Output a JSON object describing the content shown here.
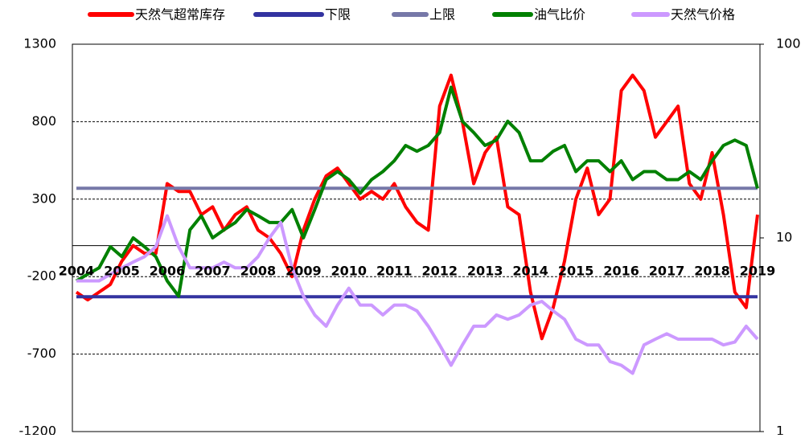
{
  "chart_data": {
    "type": "line",
    "categories": [
      "2004",
      null,
      null,
      null,
      "2005",
      null,
      null,
      null,
      "2006",
      null,
      null,
      null,
      "2007",
      null,
      null,
      null,
      "2008",
      null,
      null,
      null,
      "2009",
      null,
      null,
      null,
      "2010",
      null,
      null,
      null,
      "2011",
      null,
      null,
      null,
      "2012",
      null,
      null,
      null,
      "2013",
      null,
      null,
      null,
      "2014",
      null,
      null,
      null,
      "2015",
      null,
      null,
      null,
      "2016",
      null,
      null,
      null,
      "2017",
      null,
      null,
      null,
      "2018",
      null,
      null,
      null,
      "2019"
    ],
    "series": [
      {
        "name": "天然气超常库存",
        "color": "#ff0000",
        "values": [
          -300,
          -350,
          -300,
          -250,
          -100,
          0,
          -50,
          -50,
          400,
          350,
          350,
          200,
          250,
          100,
          200,
          250,
          100,
          50,
          -50,
          -200,
          100,
          300,
          450,
          500,
          400,
          300,
          350,
          300,
          400,
          250,
          150,
          100,
          900,
          1100,
          800,
          400,
          600,
          700,
          250,
          200,
          -300,
          -600,
          -400,
          -100,
          300,
          500,
          200,
          300,
          1000,
          1100,
          1000,
          700,
          800,
          900,
          400,
          300,
          600,
          200,
          -300,
          -400,
          200
        ]
      },
      {
        "name": "下限",
        "color": "#3333a0",
        "values": [
          -330,
          -330,
          -330,
          -330,
          -330,
          -330,
          -330,
          -330,
          -330,
          -330,
          -330,
          -330,
          -330,
          -330,
          -330,
          -330,
          -330,
          -330,
          -330,
          -330,
          -330,
          -330,
          -330,
          -330,
          -330,
          -330,
          -330,
          -330,
          -330,
          -330,
          -330,
          -330,
          -330,
          -330,
          -330,
          -330,
          -330,
          -330,
          -330,
          -330,
          -330,
          -330,
          -330,
          -330,
          -330,
          -330,
          -330,
          -330,
          -330,
          -330,
          -330,
          -330,
          -330,
          -330,
          -330,
          -330,
          -330,
          -330,
          -330,
          -330,
          -330
        ]
      },
      {
        "name": "上限",
        "color": "#7678a8",
        "values": [
          370,
          370,
          370,
          370,
          370,
          370,
          370,
          370,
          370,
          370,
          370,
          370,
          370,
          370,
          370,
          370,
          370,
          370,
          370,
          370,
          370,
          370,
          370,
          370,
          370,
          370,
          370,
          370,
          370,
          370,
          370,
          370,
          370,
          370,
          370,
          370,
          370,
          370,
          370,
          370,
          370,
          370,
          370,
          370,
          370,
          370,
          370,
          370,
          370,
          370,
          370,
          370,
          370,
          370,
          370,
          370,
          370,
          370,
          370,
          370,
          370
        ]
      },
      {
        "name": "油气比价",
        "color": "#008000",
        "axis": "y2",
        "values": [
          6,
          6.5,
          7,
          9,
          8,
          10,
          9,
          8,
          6,
          5,
          11,
          13,
          10,
          11,
          12,
          14,
          13,
          12,
          12,
          14,
          10,
          14,
          20,
          22,
          20,
          17,
          20,
          22,
          25,
          30,
          28,
          30,
          35,
          60,
          40,
          35,
          30,
          32,
          40,
          35,
          25,
          25,
          28,
          30,
          22,
          25,
          25,
          22,
          25,
          20,
          22,
          22,
          20,
          20,
          22,
          20,
          25,
          30,
          32,
          30,
          18
        ]
      },
      {
        "name": "天然气价格",
        "color": "#cc99ff",
        "axis": "y2",
        "values": [
          6,
          6,
          6,
          6.5,
          7,
          7.5,
          8,
          9,
          13,
          9,
          7,
          7,
          7,
          7.5,
          7,
          7,
          8,
          10,
          12,
          7,
          5,
          4,
          3.5,
          4.5,
          5.5,
          4.5,
          4.5,
          4,
          4.5,
          4.5,
          4.2,
          3.5,
          2.8,
          2.2,
          2.8,
          3.5,
          3.5,
          4,
          3.8,
          4,
          4.5,
          4.7,
          4.2,
          3.8,
          3,
          2.8,
          2.8,
          2.3,
          2.2,
          2,
          2.8,
          3,
          3.2,
          3,
          3,
          3,
          3,
          2.8,
          2.9,
          3.5,
          3
        ]
      }
    ],
    "ylim": [
      -1200,
      1300
    ],
    "yticks": [
      -1200,
      -700,
      -200,
      300,
      800,
      1300
    ],
    "y2lim": [
      1,
      100
    ],
    "y2ticks": [
      1,
      10,
      100
    ],
    "y2log": true,
    "grid": true,
    "legend": "top"
  }
}
